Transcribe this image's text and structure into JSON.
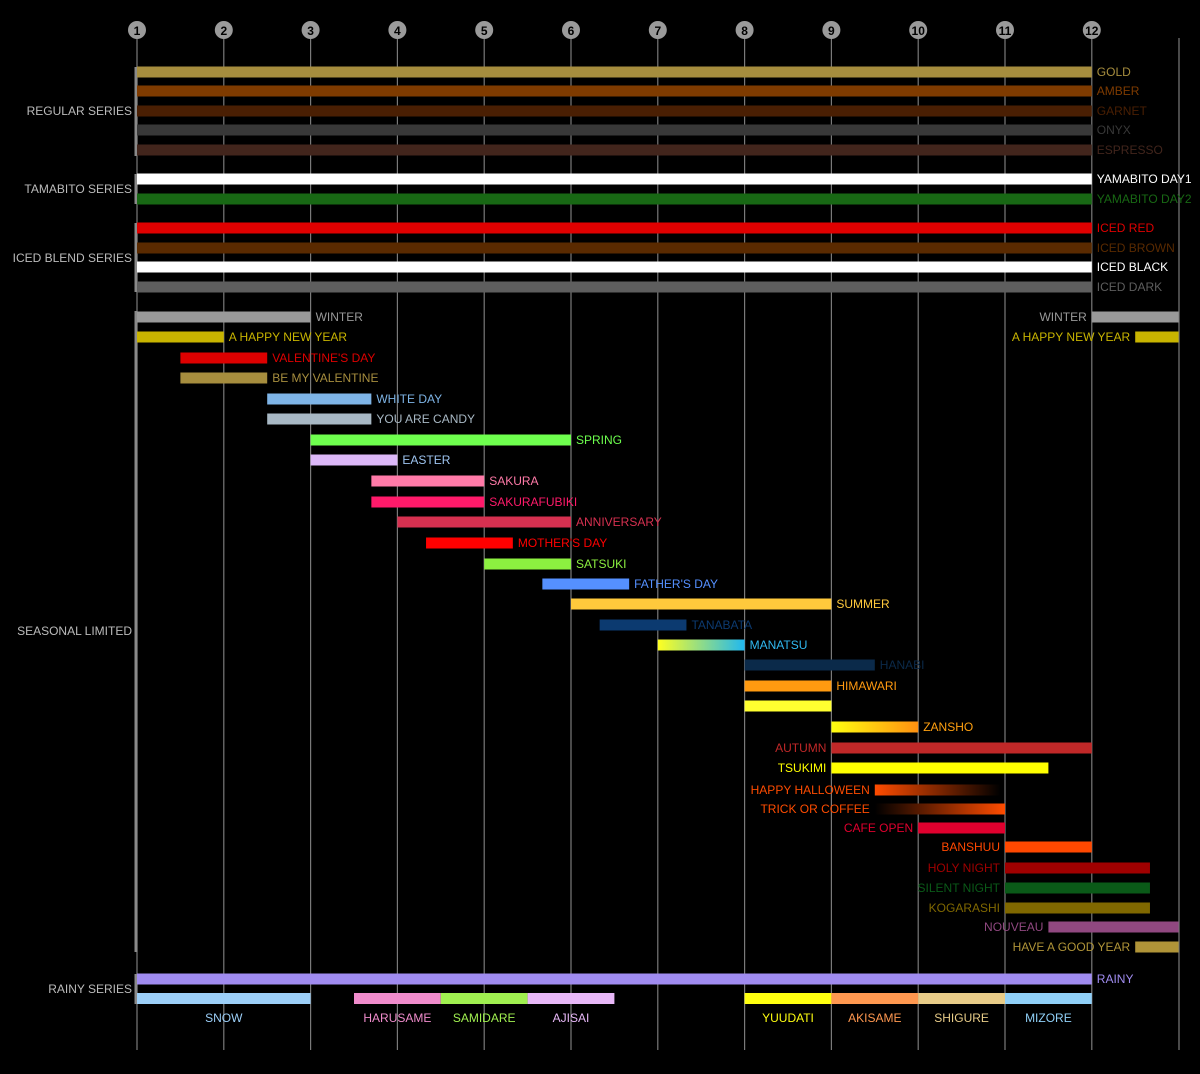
{
  "chart_data": {
    "type": "gantt",
    "x_axis": {
      "ticks": [
        "1",
        "2",
        "3",
        "4",
        "5",
        "6",
        "7",
        "8",
        "9",
        "10",
        "11",
        "12"
      ],
      "unit": "month",
      "range": [
        1,
        13
      ]
    },
    "groups": [
      {
        "name": "REGULAR SERIES",
        "bars": [
          {
            "label": "GOLD",
            "start": 1,
            "end": 12,
            "color": "#a68d3e"
          },
          {
            "label": "AMBER",
            "start": 1,
            "end": 12,
            "color": "#7f3b00"
          },
          {
            "label": "GARNET",
            "start": 1,
            "end": 12,
            "color": "#4a1f03"
          },
          {
            "label": "ONYX",
            "start": 1,
            "end": 12,
            "color": "#383838"
          },
          {
            "label": "ESPRESSO",
            "start": 1,
            "end": 12,
            "color": "#42251c"
          }
        ]
      },
      {
        "name": "TAMABITO SERIES",
        "bars": [
          {
            "label": "YAMABITO DAY1",
            "start": 1,
            "end": 12,
            "color": "#ffffff"
          },
          {
            "label": "YAMABITO DAY2",
            "start": 1,
            "end": 12,
            "color": "#186814"
          }
        ]
      },
      {
        "name": "ICED BLEND SERIES",
        "bars": [
          {
            "label": "ICED RED",
            "start": 1,
            "end": 12,
            "color": "#e00000"
          },
          {
            "label": "ICED BROWN",
            "start": 1,
            "end": 12,
            "color": "#5a2a00"
          },
          {
            "label": "ICED BLACK",
            "start": 1,
            "end": 12,
            "color": "#ffffff"
          },
          {
            "label": "ICED DARK",
            "start": 1,
            "end": 12,
            "color": "#5e5e5e"
          }
        ]
      },
      {
        "name": "SEASONAL LIMITED",
        "bars": [
          {
            "label": "WINTER",
            "start": 1,
            "end": 3,
            "color": "#999999",
            "side": "r"
          },
          {
            "label": "WINTER",
            "start": 12,
            "end": 13,
            "color": "#999999",
            "side": "l",
            "row": 0
          },
          {
            "label": "A HAPPY NEW YEAR",
            "start": 1,
            "end": 2,
            "color": "#c8b400",
            "side": "r"
          },
          {
            "label": "A HAPPY NEW YEAR",
            "start": 12.5,
            "end": 13,
            "color": "#c8b400",
            "side": "l",
            "row": 1
          },
          {
            "label": "VALENTINE'S DAY",
            "start": 1.5,
            "end": 2.5,
            "color": "#dd0000",
            "side": "r"
          },
          {
            "label": "BE MY VALENTINE",
            "start": 1.5,
            "end": 2.5,
            "color": "#a68d3e",
            "side": "r"
          },
          {
            "label": "WHITE DAY",
            "start": 2.5,
            "end": 3.7,
            "color": "#7eb4e6",
            "side": "r"
          },
          {
            "label": "YOU ARE CANDY",
            "start": 2.5,
            "end": 3.7,
            "color": "#a8b8c4",
            "side": "r"
          },
          {
            "label": "SPRING",
            "start": 3,
            "end": 6,
            "color": "#6eff4e",
            "side": "r"
          },
          {
            "label": "EASTER",
            "start": 3,
            "end": 4,
            "color": "#dcb8f8",
            "label_color": "#9ec4f0",
            "side": "r"
          },
          {
            "label": "SAKURA",
            "start": 3.7,
            "end": 5,
            "color": "#ff7aa8",
            "side": "r"
          },
          {
            "label": "SAKURAFUBIKI",
            "start": 3.7,
            "end": 5,
            "color": "#ff1a6a",
            "side": "r"
          },
          {
            "label": "ANNIVERSARY",
            "start": 4,
            "end": 6,
            "color": "#d63050",
            "side": "r"
          },
          {
            "label": "MOTHER'S DAY",
            "start": 4.33,
            "end": 5.33,
            "color": "#ff0000",
            "side": "r"
          },
          {
            "label": "SATSUKI",
            "start": 5,
            "end": 6,
            "color": "#8cf040",
            "side": "r"
          },
          {
            "label": "FATHER'S DAY",
            "start": 5.67,
            "end": 6.67,
            "color": "#5590ff",
            "side": "r"
          },
          {
            "label": "SUMMER",
            "start": 6,
            "end": 9,
            "color": "#ffc93c",
            "side": "r"
          },
          {
            "label": "TANABATA",
            "start": 6.33,
            "end": 7.33,
            "color": "#0c3a70",
            "side": "r"
          },
          {
            "label": "MANATSU",
            "start": 7,
            "end": 8,
            "color": "#ffff20",
            "color2": "#20b8f0",
            "label_color": "#30b8f0",
            "side": "r"
          },
          {
            "label": "HANABI",
            "start": 8,
            "end": 9.5,
            "color": "#0b2a4a",
            "side": "r"
          },
          {
            "label": "HIMAWARI",
            "start": 8,
            "end": 9,
            "color": "#ff9a10",
            "side": "r"
          },
          {
            "label": "",
            "start": 8,
            "end": 9,
            "color": "#ffff30",
            "side": "r"
          },
          {
            "label": "ZANSHO",
            "start": 9,
            "end": 10,
            "color": "#ffff10",
            "color2": "#ff9010",
            "label_color": "#ffa010",
            "side": "r"
          },
          {
            "label": "AUTUMN",
            "start": 9,
            "end": 12,
            "color": "#c02828",
            "side": "l"
          },
          {
            "label": "TSUKIMI",
            "start": 9,
            "end": 11.5,
            "color": "#ffff00",
            "side": "l"
          },
          {
            "label": "HAPPY HALLOWEEN",
            "start": 9.5,
            "end": 10.95,
            "color": "#ff4c00",
            "color2": "#000000",
            "label_color": "#ff4c00",
            "side": "l"
          },
          {
            "label": "TRICK OR COFFEE",
            "start": 9.5,
            "end": 11,
            "color": "#000000",
            "color2": "#ff4c00",
            "label_color": "#ff4c00",
            "side": "l"
          },
          {
            "label": "CAFE OPEN",
            "start": 10,
            "end": 11,
            "color": "#e0002e",
            "side": "l"
          },
          {
            "label": "BANSHUU",
            "start": 11,
            "end": 12,
            "color": "#ff4800",
            "side": "l"
          },
          {
            "label": "HOLY NIGHT",
            "start": 11,
            "end": 12.67,
            "color": "#a00000",
            "side": "l"
          },
          {
            "label": "SILENT NIGHT",
            "start": 11,
            "end": 12.67,
            "color": "#0a5a18",
            "side": "l"
          },
          {
            "label": "KOGARASHI",
            "start": 11,
            "end": 12.67,
            "color": "#806800",
            "side": "l"
          },
          {
            "label": "NOUVEAU",
            "start": 11.5,
            "end": 13,
            "color": "#904880",
            "side": "l"
          },
          {
            "label": "HAVE A GOOD YEAR",
            "start": 12.5,
            "end": 13,
            "color": "#b09438",
            "side": "l"
          }
        ]
      },
      {
        "name": "RAINY SERIES",
        "bars": [
          {
            "label": "RAINY",
            "start": 1,
            "end": 12,
            "color": "#a08cf0",
            "side": "r"
          }
        ],
        "sub": [
          {
            "label": "SNOW",
            "start": 1,
            "end": 3,
            "color": "#9ccff8"
          },
          {
            "label": "HARUSAME",
            "start": 3.5,
            "end": 4.5,
            "color": "#f08ccc"
          },
          {
            "label": "SAMIDARE",
            "start": 4.5,
            "end": 5.5,
            "color": "#a0f050"
          },
          {
            "label": "AJISAI",
            "start": 5.5,
            "end": 6.5,
            "color": "#e8b8f8"
          },
          {
            "label": "YUUDATI",
            "start": 8,
            "end": 9,
            "color": "#ffff10"
          },
          {
            "label": "AKISAME",
            "start": 9,
            "end": 10,
            "color": "#ff9850"
          },
          {
            "label": "SHIGURE",
            "start": 10,
            "end": 11,
            "color": "#e8cc88"
          },
          {
            "label": "MIZORE",
            "start": 11,
            "end": 12,
            "color": "#90d0f8"
          }
        ]
      }
    ]
  }
}
